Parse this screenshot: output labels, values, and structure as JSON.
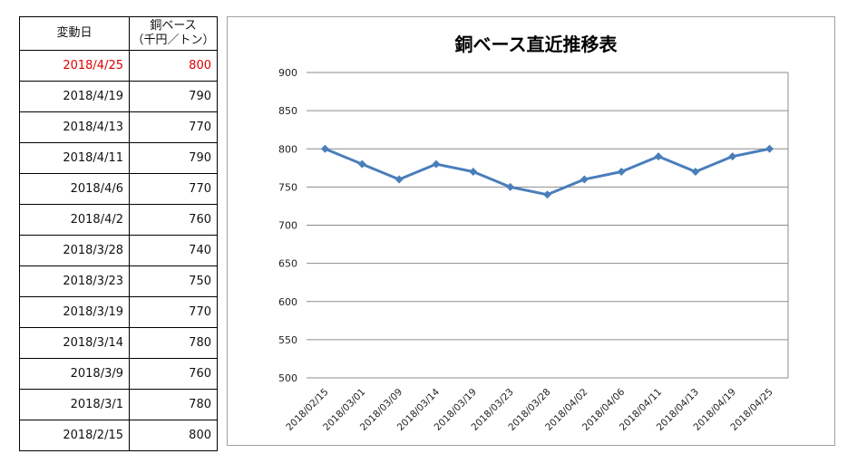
{
  "table": {
    "headers": {
      "date": "変動日",
      "price_line1": "銅ベース",
      "price_line2": "（千円／トン）"
    },
    "rows": [
      {
        "date": "2018/4/25",
        "price": "800"
      },
      {
        "date": "2018/4/19",
        "price": "790"
      },
      {
        "date": "2018/4/13",
        "price": "770"
      },
      {
        "date": "2018/4/11",
        "price": "790"
      },
      {
        "date": "2018/4/6",
        "price": "770"
      },
      {
        "date": "2018/4/2",
        "price": "760"
      },
      {
        "date": "2018/3/28",
        "price": "740"
      },
      {
        "date": "2018/3/23",
        "price": "750"
      },
      {
        "date": "2018/3/19",
        "price": "770"
      },
      {
        "date": "2018/3/14",
        "price": "780"
      },
      {
        "date": "2018/3/9",
        "price": "760"
      },
      {
        "date": "2018/3/1",
        "price": "780"
      },
      {
        "date": "2018/2/15",
        "price": "800"
      }
    ],
    "highlight_color": "#e00000"
  },
  "chart_data": {
    "type": "line",
    "title": "銅ベース直近推移表",
    "xlabel": "",
    "ylabel": "",
    "categories": [
      "2018/02/15",
      "2018/03/01",
      "2018/03/09",
      "2018/03/14",
      "2018/03/19",
      "2018/03/23",
      "2018/03/28",
      "2018/04/02",
      "2018/04/06",
      "2018/04/11",
      "2018/04/13",
      "2018/04/19",
      "2018/04/25"
    ],
    "series": [
      {
        "values": [
          800,
          780,
          760,
          780,
          770,
          750,
          740,
          760,
          770,
          790,
          770,
          790,
          800
        ],
        "color": "#4a7ebb"
      }
    ],
    "ylim": [
      500,
      900
    ],
    "yticks": [
      500,
      550,
      600,
      650,
      700,
      750,
      800,
      850,
      900
    ],
    "grid": true,
    "legend": "none"
  }
}
